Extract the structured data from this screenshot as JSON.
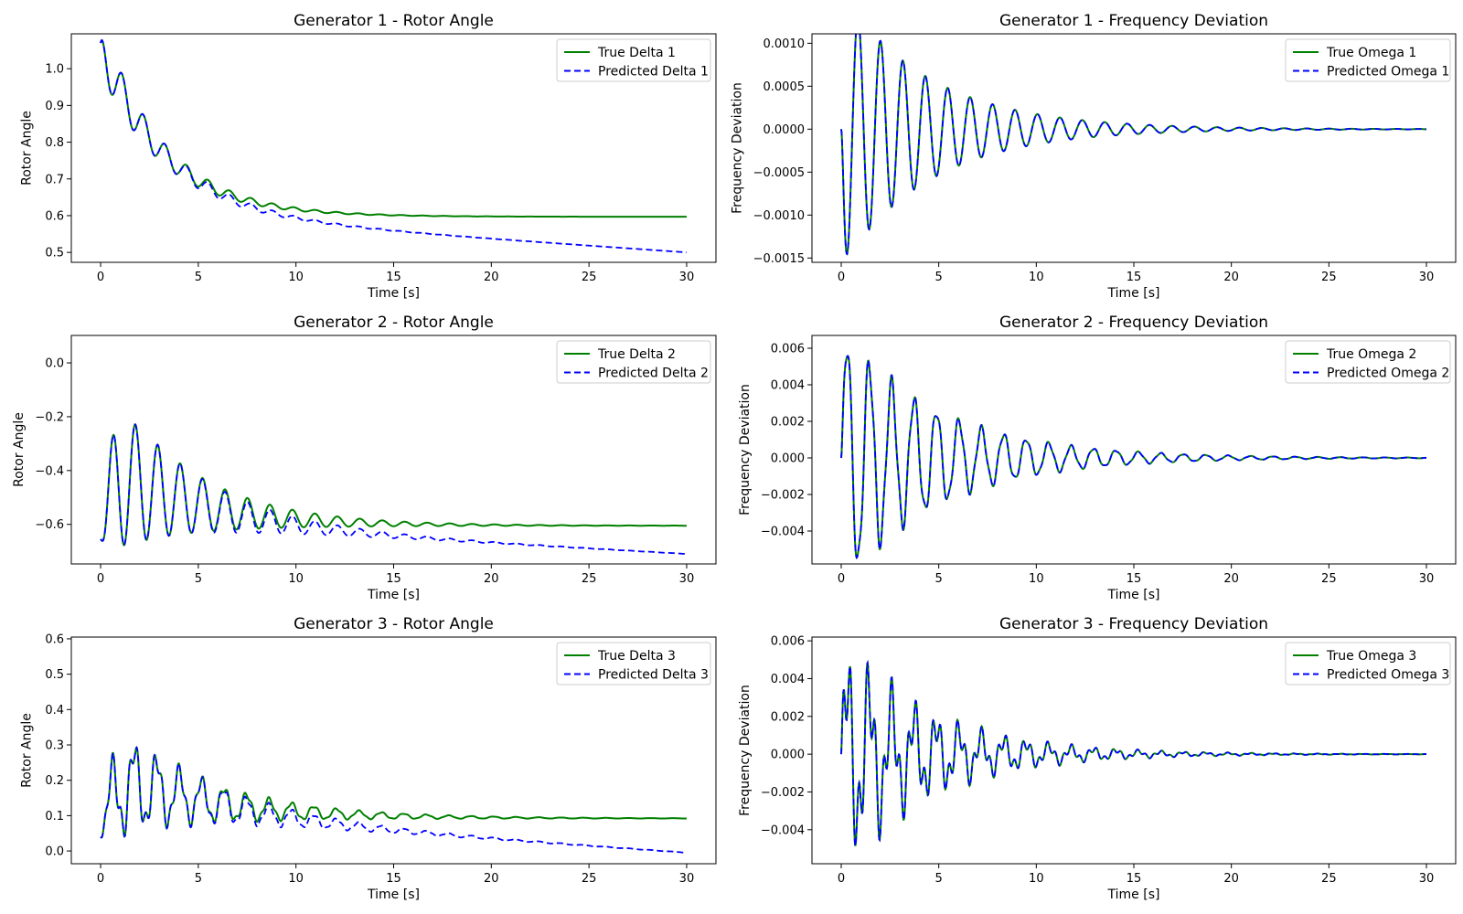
{
  "colors": {
    "true_series": "#008000",
    "predicted_series": "#0000ff",
    "frame": "#000000",
    "legend_border": "#cccccc"
  },
  "chart_data": [
    {
      "type": "line",
      "title": "Generator 1 - Rotor Angle",
      "xlabel": "Time [s]",
      "ylabel": "Rotor Angle",
      "xlim": [
        -1.5,
        31.5
      ],
      "ylim": [
        0.473,
        1.095
      ],
      "xticks": [
        0,
        5,
        10,
        15,
        20,
        25,
        30
      ],
      "xtick_labels": [
        "0",
        "5",
        "10",
        "15",
        "20",
        "25",
        "30"
      ],
      "yticks": [
        0.5,
        0.6,
        0.7,
        0.8,
        0.9,
        1.0
      ],
      "ytick_labels": [
        "0.5",
        "0.6",
        "0.7",
        "0.8",
        "0.9",
        "1.0"
      ],
      "legend": "top-right",
      "grid": false,
      "model": {
        "kind": "angle",
        "start": 1.07,
        "final_true": 0.597,
        "final_pred": 0.5,
        "amp": 0.08,
        "decay": 0.28,
        "period": 1.1,
        "drift_start": 3.5,
        "drift_scale": 10.0,
        "trans": 0.65,
        "hfamp": 0.0,
        "hfperiod": 0.4
      },
      "series": [
        {
          "name": "True Delta 1",
          "style": "solid",
          "color": "#008000"
        },
        {
          "name": "Predicted Delta 1",
          "style": "dashed",
          "color": "#0000ff"
        }
      ]
    },
    {
      "type": "line",
      "title": "Generator 1 - Frequency Deviation",
      "xlabel": "Time [s]",
      "ylabel": "Frequency Deviation",
      "xlim": [
        -1.5,
        31.5
      ],
      "ylim": [
        -0.00155,
        0.00111
      ],
      "xticks": [
        0,
        5,
        10,
        15,
        20,
        25,
        30
      ],
      "xtick_labels": [
        "0",
        "5",
        "10",
        "15",
        "20",
        "25",
        "30"
      ],
      "yticks": [
        -0.0015,
        -0.001,
        -0.0005,
        0.0,
        0.0005,
        0.001
      ],
      "ytick_labels": [
        "−0.0015",
        "−0.0010",
        "−0.0005",
        "0.0000",
        "0.0005",
        "0.0010"
      ],
      "legend": "top-right",
      "grid": false,
      "model": {
        "kind": "freq",
        "amp": 0.0016,
        "decay": 0.22,
        "period": 1.15,
        "sign": -1,
        "hfamp": 0.0,
        "hfperiod": 0.4
      },
      "series": [
        {
          "name": "True Omega 1",
          "style": "solid",
          "color": "#008000"
        },
        {
          "name": "Predicted Omega 1",
          "style": "dashed",
          "color": "#0000ff"
        }
      ]
    },
    {
      "type": "line",
      "title": "Generator 2 - Rotor Angle",
      "xlabel": "Time [s]",
      "ylabel": "Rotor Angle",
      "xlim": [
        -1.5,
        31.5
      ],
      "ylim": [
        -0.747,
        0.102
      ],
      "xticks": [
        0,
        5,
        10,
        15,
        20,
        25,
        30
      ],
      "xtick_labels": [
        "0",
        "5",
        "10",
        "15",
        "20",
        "25",
        "30"
      ],
      "yticks": [
        -0.6,
        -0.4,
        -0.2,
        0.0
      ],
      "ytick_labels": [
        "−0.6",
        "−0.4",
        "−0.2",
        "0.0"
      ],
      "legend": "top-right",
      "grid": false,
      "model": {
        "kind": "angle2",
        "start": -0.655,
        "final_true": -0.605,
        "final_pred": -0.71,
        "amp": 0.7,
        "decay": 0.24,
        "period": 1.15,
        "drift_start": 4.0,
        "drift_scale": 12.0,
        "trans": 0.0,
        "hfamp": 0.0,
        "hfperiod": 0.4
      },
      "series": [
        {
          "name": "True Delta 2",
          "style": "solid",
          "color": "#008000"
        },
        {
          "name": "Predicted Delta 2",
          "style": "dashed",
          "color": "#0000ff"
        }
      ]
    },
    {
      "type": "line",
      "title": "Generator 2 - Frequency Deviation",
      "xlabel": "Time [s]",
      "ylabel": "Frequency Deviation",
      "xlim": [
        -1.5,
        31.5
      ],
      "ylim": [
        -0.0058,
        0.0067
      ],
      "xticks": [
        0,
        5,
        10,
        15,
        20,
        25,
        30
      ],
      "xtick_labels": [
        "0",
        "5",
        "10",
        "15",
        "20",
        "25",
        "30"
      ],
      "yticks": [
        -0.004,
        -0.002,
        0.0,
        0.002,
        0.004,
        0.006
      ],
      "ytick_labels": [
        "−0.004",
        "−0.002",
        "0.000",
        "0.002",
        "0.004",
        "0.006"
      ],
      "legend": "top-right",
      "grid": false,
      "model": {
        "kind": "freq",
        "amp": 0.0068,
        "decay": 0.2,
        "period": 1.15,
        "sign": 1,
        "hfamp": 0.0008,
        "hfperiod": 0.42
      },
      "series": [
        {
          "name": "True Omega 2",
          "style": "solid",
          "color": "#008000"
        },
        {
          "name": "Predicted Omega 2",
          "style": "dashed",
          "color": "#0000ff"
        }
      ]
    },
    {
      "type": "line",
      "title": "Generator 3 - Rotor Angle",
      "xlabel": "Time [s]",
      "ylabel": "Rotor Angle",
      "xlim": [
        -1.5,
        31.5
      ],
      "ylim": [
        -0.036,
        0.605
      ],
      "xticks": [
        0,
        5,
        10,
        15,
        20,
        25,
        30
      ],
      "xtick_labels": [
        "0",
        "5",
        "10",
        "15",
        "20",
        "25",
        "30"
      ],
      "yticks": [
        0.0,
        0.1,
        0.2,
        0.3,
        0.4,
        0.5,
        0.6
      ],
      "ytick_labels": [
        "0.0",
        "0.1",
        "0.2",
        "0.3",
        "0.4",
        "0.5",
        "0.6"
      ],
      "legend": "top-right",
      "grid": false,
      "model": {
        "kind": "angle3",
        "start": 0.04,
        "final_true": 0.092,
        "final_pred": -0.005,
        "amp": 0.32,
        "decay": 0.2,
        "period": 1.15,
        "drift_start": 4.5,
        "drift_scale": 12.0,
        "trans": 0.0,
        "hfamp": 0.12,
        "hfperiod": 0.42
      },
      "series": [
        {
          "name": "True Delta 3",
          "style": "solid",
          "color": "#008000"
        },
        {
          "name": "Predicted Delta 3",
          "style": "dashed",
          "color": "#0000ff"
        }
      ]
    },
    {
      "type": "line",
      "title": "Generator 3 - Frequency Deviation",
      "xlabel": "Time [s]",
      "ylabel": "Frequency Deviation",
      "xlim": [
        -1.5,
        31.5
      ],
      "ylim": [
        -0.0058,
        0.0062
      ],
      "xticks": [
        0,
        5,
        10,
        15,
        20,
        25,
        30
      ],
      "xtick_labels": [
        "0",
        "5",
        "10",
        "15",
        "20",
        "25",
        "30"
      ],
      "yticks": [
        -0.004,
        -0.002,
        0.0,
        0.002,
        0.004,
        0.006
      ],
      "ytick_labels": [
        "−0.004",
        "−0.002",
        "0.000",
        "0.002",
        "0.004",
        "0.006"
      ],
      "legend": "top-right",
      "grid": false,
      "model": {
        "kind": "freq",
        "amp": 0.0046,
        "decay": 0.22,
        "period": 1.15,
        "sign": 1,
        "hfamp": 0.0026,
        "hfperiod": 0.42
      },
      "series": [
        {
          "name": "True Omega 3",
          "style": "solid",
          "color": "#008000"
        },
        {
          "name": "Predicted Omega 3",
          "style": "dashed",
          "color": "#0000ff"
        }
      ]
    }
  ]
}
